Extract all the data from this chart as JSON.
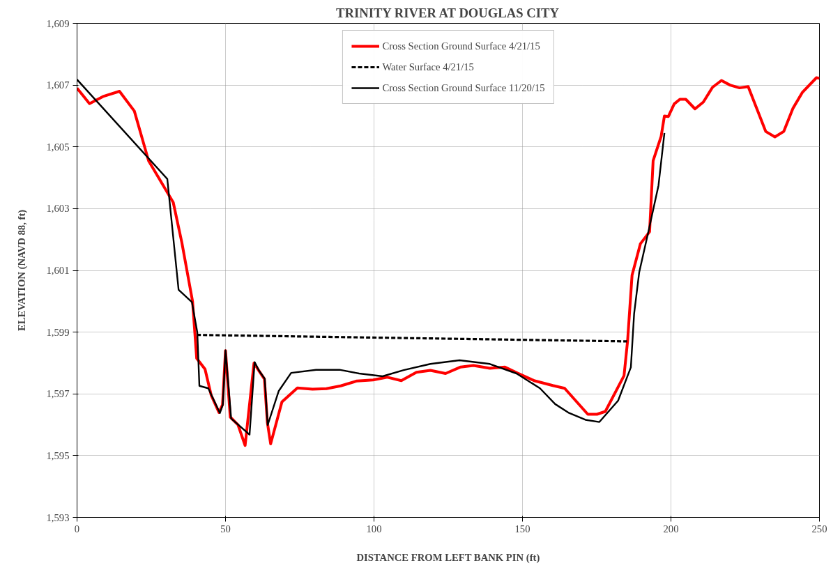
{
  "chart_data": {
    "type": "line",
    "title": "TRINITY RIVER AT DOUGLAS CITY",
    "xlabel": "DISTANCE FROM LEFT BANK PIN (ft)",
    "ylabel": "ELEVATION (NAVD 88, ft)",
    "xlim": [
      0,
      250
    ],
    "xticks": [
      0,
      50,
      100,
      150,
      200,
      250
    ],
    "ylim": [
      1593,
      1609
    ],
    "yticks": [
      {
        "value": 1593,
        "label": "1,593"
      },
      {
        "value": 1595,
        "label": "1,595"
      },
      {
        "value": 1597,
        "label": "1,597"
      },
      {
        "value": 1599,
        "label": "1,599"
      },
      {
        "value": 1601,
        "label": "1,601"
      },
      {
        "value": 1603,
        "label": "1,603"
      },
      {
        "value": 1605,
        "label": "1,605"
      },
      {
        "value": 1607,
        "label": "1,607"
      },
      {
        "value": 1609,
        "label": "1,609"
      }
    ],
    "grid": true,
    "legend": "top",
    "marker": "none",
    "series": [
      {
        "name": "Cross Section Ground Surface 4/21/15",
        "color": "#ff0000",
        "line_style": "solid",
        "x": [
          0,
          4.2,
          9,
          14.3,
          19.3,
          24.1,
          32.4,
          35.3,
          38.9,
          40.3,
          43.1,
          45.2,
          47.8,
          49,
          50,
          51.6,
          54.2,
          56.6,
          59.6,
          61.3,
          63.1,
          64.1,
          65.2,
          69,
          74.2,
          79.3,
          84,
          88.8,
          94.3,
          99.7,
          104.5,
          109.2,
          114.3,
          119,
          124.1,
          129.2,
          133.5,
          139,
          144.1,
          148.4,
          153.9,
          160.2,
          164.2,
          172,
          175.1,
          177.9,
          184.2,
          185.4,
          186.9,
          189.7,
          192.8,
          194,
          196.7,
          197.8,
          199.1,
          201.1,
          203,
          205,
          208.1,
          210.9,
          214,
          217,
          219.9,
          223.1,
          226,
          231.9,
          235,
          238,
          241.1,
          244.3,
          249,
          250
        ],
        "values": [
          1606.9,
          1606.4,
          1606.64,
          1606.8,
          1606.16,
          1604.55,
          1603.2,
          1601.9,
          1600,
          1598.15,
          1597.8,
          1596.95,
          1596.4,
          1596.65,
          1598.4,
          1596.25,
          1596,
          1595.33,
          1598,
          1597.74,
          1597.48,
          1596.07,
          1595.38,
          1596.74,
          1597.19,
          1597.15,
          1597.17,
          1597.26,
          1597.42,
          1597.45,
          1597.54,
          1597.43,
          1597.7,
          1597.76,
          1597.66,
          1597.87,
          1597.92,
          1597.83,
          1597.87,
          1597.67,
          1597.43,
          1597.27,
          1597.18,
          1596.34,
          1596.34,
          1596.43,
          1597.59,
          1598.72,
          1600.84,
          1601.86,
          1602.25,
          1604.55,
          1605.34,
          1606,
          1605.98,
          1606.39,
          1606.54,
          1606.54,
          1606.23,
          1606.45,
          1606.93,
          1607.15,
          1607,
          1606.91,
          1606.95,
          1605.5,
          1605.32,
          1605.5,
          1606.25,
          1606.77,
          1607.24,
          1607.22
        ]
      },
      {
        "name": "Water Surface 4/21/15",
        "color": "#000000",
        "line_style": "dashed",
        "x": [
          40.3,
          185.2
        ],
        "values": [
          1598.91,
          1598.7
        ]
      },
      {
        "name": "Cross Section Ground Surface 11/20/15",
        "color": "#000000",
        "line_style": "solid",
        "x": [
          0,
          30.4,
          34.2,
          38.7,
          40.5,
          41.2,
          44.2,
          48.1,
          49.1,
          50,
          51.9,
          58.1,
          59.8,
          61.3,
          63.2,
          64.2,
          67.9,
          72.1,
          80.5,
          88.4,
          95,
          102.9,
          110,
          119,
          128.8,
          139,
          148,
          155.9,
          161,
          165.7,
          171.2,
          175.9,
          182.2,
          186.5,
          187.6,
          189.3,
          192.4,
          195.8,
          197.8
        ],
        "values": [
          1607.18,
          1603.96,
          1600.37,
          1599.97,
          1598.99,
          1597.26,
          1597.18,
          1596.38,
          1596.65,
          1598.41,
          1596.2,
          1595.68,
          1598.03,
          1597.75,
          1597.49,
          1595.99,
          1597.09,
          1597.68,
          1597.78,
          1597.78,
          1597.66,
          1597.57,
          1597.77,
          1597.97,
          1598.09,
          1597.97,
          1597.66,
          1597.18,
          1596.67,
          1596.38,
          1596.16,
          1596.09,
          1596.78,
          1597.86,
          1599.6,
          1600.93,
          1602.25,
          1603.75,
          1605.45
        ]
      }
    ]
  }
}
